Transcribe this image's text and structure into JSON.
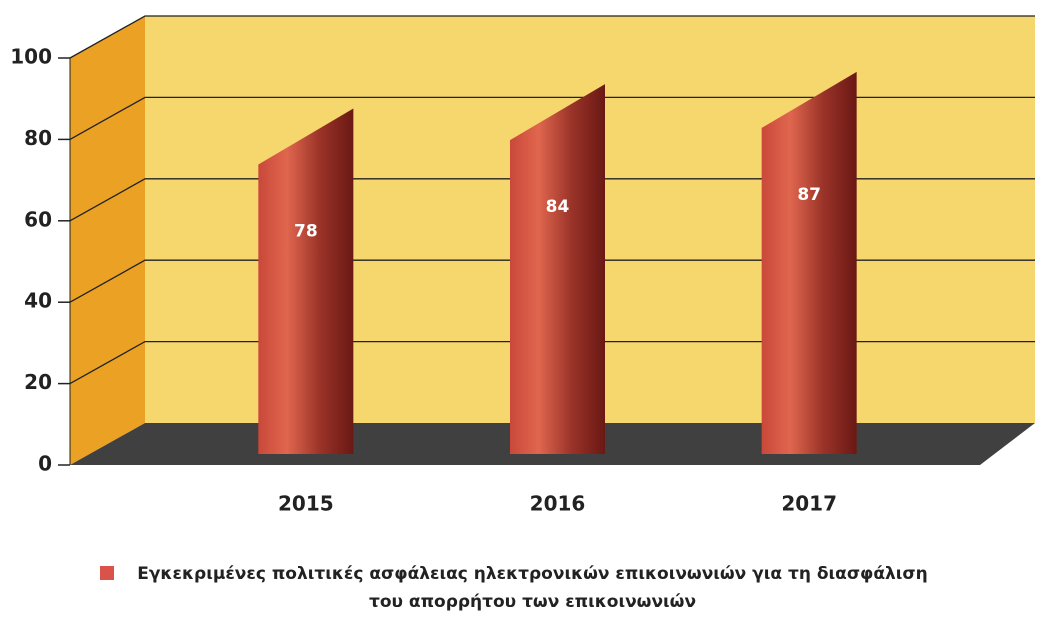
{
  "chart_data": {
    "type": "bar3d",
    "categories": [
      "2015",
      "2016",
      "2017"
    ],
    "series": [
      {
        "name": "Εγκεκριμένες πολιτικές ασφάλειας ηλεκτρονικών επικοινωνιών για τη διασφάλιση του απορρήτου των επικοινωνιών",
        "color": "#d9534a",
        "values": [
          78,
          84,
          87
        ]
      }
    ],
    "ylim": [
      0,
      100
    ],
    "yticks": [
      0,
      20,
      40,
      60,
      80,
      100
    ],
    "grid": true
  }
}
